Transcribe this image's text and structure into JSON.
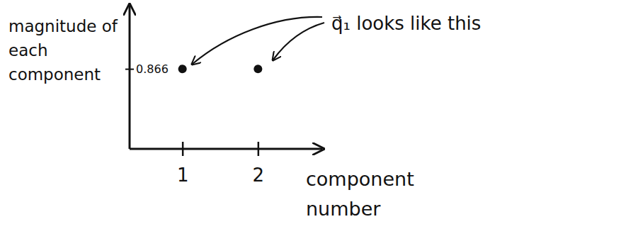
{
  "chart_data": {
    "type": "scatter",
    "x": [
      1,
      2
    ],
    "values": [
      0.866,
      0.866
    ],
    "xlim": [
      0.3,
      2.85
    ],
    "ylim": [
      0,
      1.55
    ],
    "xticks": [
      1,
      2
    ],
    "yticks": [
      0.866
    ],
    "x_label": "component number",
    "y_label": "magnitude of each component",
    "annotations": [
      "q⃗₁ looks like this"
    ],
    "color": "#111111",
    "marker": "circle",
    "grid": false
  }
}
